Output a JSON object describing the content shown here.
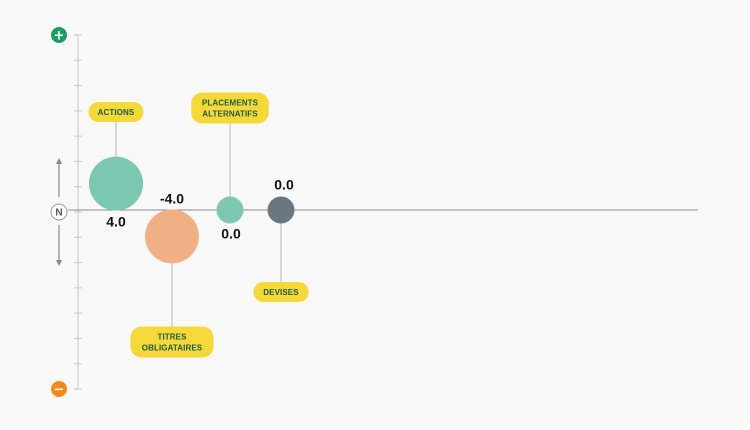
{
  "chart_data": {
    "type": "bubble",
    "title": "",
    "xlabel": "",
    "ylabel": "",
    "ylim": [
      -10,
      10
    ],
    "neutral_label": "N",
    "top_label": "+",
    "bottom_label": "−",
    "series": [
      {
        "name": "ACTIONS",
        "label_lines": [
          "ACTIONS"
        ],
        "value": 4.0,
        "value_label": "4.0",
        "weight": 1.0,
        "color": "#7ec8b2",
        "label_side": "above"
      },
      {
        "name": "TITRES OBLIGATAIRES",
        "label_lines": [
          "TITRES",
          "OBLIGATAIRES"
        ],
        "value": -4.0,
        "value_label": "-4.0",
        "weight": 1.0,
        "color": "#f1b084",
        "label_side": "below"
      },
      {
        "name": "PLACEMENTS ALTERNATIFS",
        "label_lines": [
          "PLACEMENTS",
          "ALTERNATIFS"
        ],
        "value": 0.0,
        "value_label": "0.0",
        "weight": 0.25,
        "color": "#7ec8b2",
        "label_side": "above"
      },
      {
        "name": "DEVISES",
        "label_lines": [
          "DEVISES"
        ],
        "value": 0.0,
        "value_label": "0.0",
        "weight": 0.25,
        "color": "#6b7780",
        "label_side": "below"
      }
    ]
  },
  "colors": {
    "positive": "#1a9e62",
    "negative": "#f28a1a",
    "tag_fill": "#f5d93a",
    "tag_text": "#1f5a44",
    "axis": "#c8c8c8",
    "baseline": "#8a8a8a"
  }
}
